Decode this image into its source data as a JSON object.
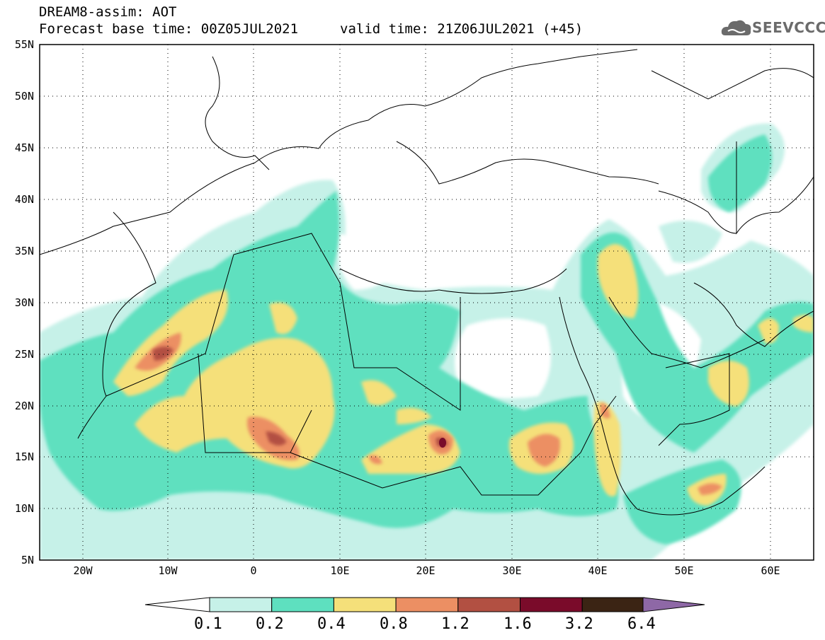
{
  "header": {
    "title": "DREAM8-assim: AOT",
    "base_time": "Forecast base time: 00Z05JUL2021",
    "valid_time": "valid time: 21Z06JUL2021 (+45)"
  },
  "logo": {
    "text": "SEEVCCC",
    "icon": "cloud-logo-icon"
  },
  "map": {
    "lat_labels": [
      "55N",
      "50N",
      "45N",
      "40N",
      "35N",
      "30N",
      "25N",
      "20N",
      "15N",
      "10N",
      "5N"
    ],
    "lon_labels": [
      "20W",
      "10W",
      "0",
      "10E",
      "20E",
      "30E",
      "40E",
      "50E",
      "60E"
    ],
    "lat_range": [
      5,
      55
    ],
    "lon_range": [
      -25,
      65
    ],
    "grid": "dotted",
    "variable": "aerosol optical thickness"
  },
  "colorbar": {
    "levels": [
      "0.1",
      "0.2",
      "0.4",
      "0.8",
      "1.2",
      "1.6",
      "3.2",
      "6.4"
    ],
    "colors": [
      "#ffffff",
      "#c6f1e8",
      "#5ee0bf",
      "#f5e07a",
      "#ec8f63",
      "#b25042",
      "#7a0b2a",
      "#3b2414",
      "#8e68a6"
    ]
  },
  "colors": {
    "c1": "#c6f1e8",
    "c2": "#5ee0bf",
    "c3": "#f5e07a",
    "c4": "#ec8f63",
    "c5": "#b25042",
    "c6": "#7a0b2a"
  }
}
